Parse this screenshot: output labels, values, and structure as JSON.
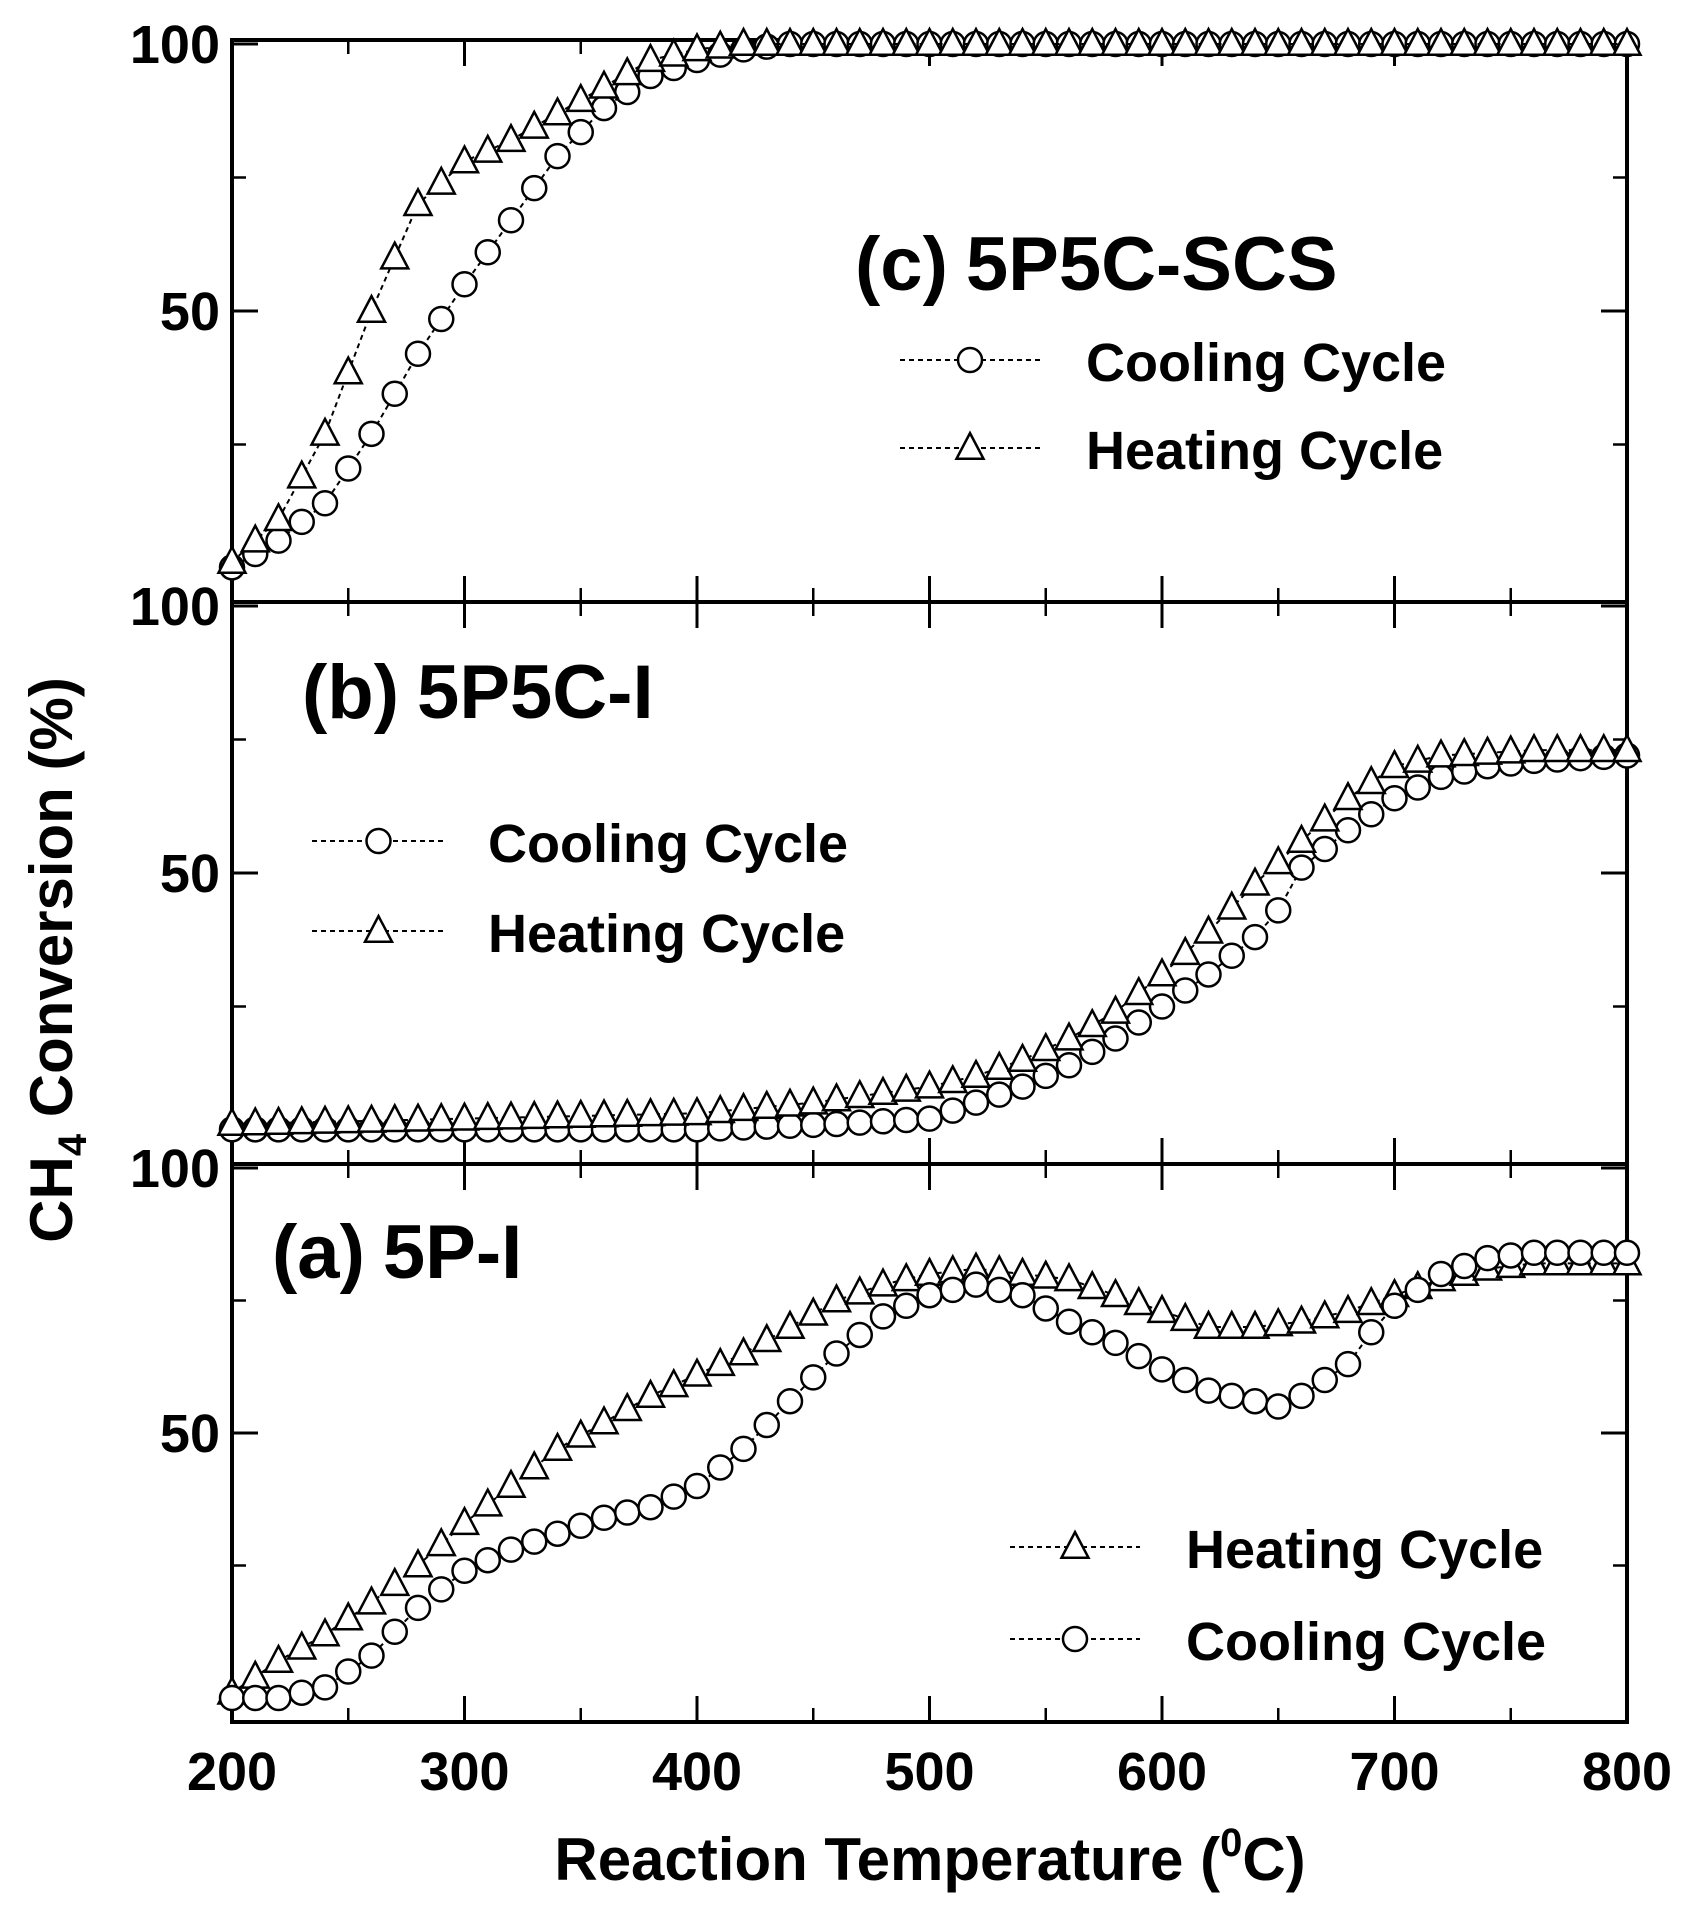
{
  "chart_data": {
    "type": "line",
    "shared_x_axis": {
      "label_parts": [
        "Reaction Temperature (",
        "0",
        "C)"
      ],
      "xlim": [
        200,
        800
      ],
      "major_ticks": [
        200,
        300,
        400,
        500,
        600,
        700,
        800
      ],
      "minor_ticks": [
        250,
        350,
        450,
        550,
        650,
        750
      ]
    },
    "shared_y_axis": {
      "label_parts": [
        "CH",
        "4",
        " Conversion (%)"
      ]
    },
    "marker_step": 10,
    "panels": [
      {
        "id": "c",
        "title_id": "(c)",
        "title_name": "5P5C-SCS",
        "ylim": [
          0,
          100
        ],
        "major_ticks": [
          50,
          100
        ],
        "minor_ticks": [
          25,
          75
        ],
        "tick_labels": [
          "50",
          "100"
        ],
        "legend": [
          "Cooling Cycle",
          "Heating Cycle"
        ],
        "series": [
          {
            "name": "Cooling Cycle",
            "marker": "circle",
            "points": [
              [
                200,
                2
              ],
              [
                220,
                7
              ],
              [
                240,
                14
              ],
              [
                260,
                27
              ],
              [
                280,
                42
              ],
              [
                300,
                55
              ],
              [
                320,
                67
              ],
              [
                340,
                79
              ],
              [
                360,
                88
              ],
              [
                380,
                94
              ],
              [
                400,
                97
              ],
              [
                420,
                99
              ],
              [
                440,
                100
              ],
              [
                800,
                100
              ]
            ]
          },
          {
            "name": "Heating Cycle",
            "marker": "triangle",
            "points": [
              [
                200,
                3
              ],
              [
                220,
                11
              ],
              [
                240,
                27
              ],
              [
                260,
                50
              ],
              [
                280,
                70
              ],
              [
                300,
                78
              ],
              [
                320,
                82
              ],
              [
                340,
                87
              ],
              [
                360,
                92
              ],
              [
                380,
                97
              ],
              [
                400,
                99
              ],
              [
                420,
                100
              ],
              [
                800,
                100
              ]
            ]
          }
        ]
      },
      {
        "id": "b",
        "title_id": "(b)",
        "title_name": "5P5C-I",
        "ylim": [
          0,
          100
        ],
        "major_ticks": [
          50,
          100
        ],
        "minor_ticks": [
          25,
          75
        ],
        "tick_labels": [
          "50",
          "100"
        ],
        "legend": [
          "Cooling Cycle",
          "Heating Cycle"
        ],
        "series": [
          {
            "name": "Cooling Cycle",
            "marker": "circle",
            "points": [
              [
                200,
                2
              ],
              [
                300,
                2
              ],
              [
                400,
                2
              ],
              [
                460,
                3
              ],
              [
                500,
                4
              ],
              [
                520,
                7
              ],
              [
                540,
                10
              ],
              [
                560,
                14
              ],
              [
                580,
                19
              ],
              [
                600,
                25
              ],
              [
                620,
                31
              ],
              [
                640,
                38
              ],
              [
                650,
                43
              ],
              [
                660,
                51
              ],
              [
                680,
                58
              ],
              [
                700,
                64
              ],
              [
                720,
                68
              ],
              [
                740,
                70
              ],
              [
                760,
                71
              ],
              [
                800,
                72
              ]
            ]
          },
          {
            "name": "Heating Cycle",
            "marker": "triangle",
            "points": [
              [
                200,
                3
              ],
              [
                300,
                4
              ],
              [
                400,
                5
              ],
              [
                450,
                7
              ],
              [
                500,
                10
              ],
              [
                520,
                12
              ],
              [
                540,
                15
              ],
              [
                560,
                19
              ],
              [
                580,
                24
              ],
              [
                600,
                31
              ],
              [
                620,
                39
              ],
              [
                640,
                48
              ],
              [
                660,
                56
              ],
              [
                680,
                64
              ],
              [
                700,
                70
              ],
              [
                720,
                72
              ],
              [
                760,
                73
              ],
              [
                800,
                73
              ]
            ]
          }
        ]
      },
      {
        "id": "a",
        "title_id": "(a)",
        "title_name": "5P-I",
        "ylim": [
          0,
          100
        ],
        "major_ticks": [
          50,
          100
        ],
        "minor_ticks": [
          25,
          75
        ],
        "tick_labels": [
          "50",
          "100"
        ],
        "legend": [
          "Heating Cycle",
          "Cooling Cycle"
        ],
        "series": [
          {
            "name": "Heating Cycle",
            "marker": "triangle",
            "points": [
              [
                200,
                1
              ],
              [
                220,
                7
              ],
              [
                240,
                12
              ],
              [
                260,
                18
              ],
              [
                280,
                25
              ],
              [
                300,
                33
              ],
              [
                320,
                40
              ],
              [
                340,
                47
              ],
              [
                360,
                52
              ],
              [
                380,
                57
              ],
              [
                400,
                61
              ],
              [
                420,
                65
              ],
              [
                440,
                70
              ],
              [
                460,
                75
              ],
              [
                480,
                78
              ],
              [
                500,
                80
              ],
              [
                520,
                81
              ],
              [
                540,
                80
              ],
              [
                560,
                79
              ],
              [
                580,
                76
              ],
              [
                600,
                73
              ],
              [
                620,
                70
              ],
              [
                640,
                70
              ],
              [
                660,
                71
              ],
              [
                680,
                73
              ],
              [
                700,
                76
              ],
              [
                720,
                79
              ],
              [
                740,
                81
              ],
              [
                760,
                82
              ],
              [
                800,
                82
              ]
            ]
          },
          {
            "name": "Cooling Cycle",
            "marker": "circle",
            "points": [
              [
                200,
                0
              ],
              [
                220,
                0
              ],
              [
                240,
                2
              ],
              [
                260,
                8
              ],
              [
                280,
                17
              ],
              [
                300,
                24
              ],
              [
                320,
                28
              ],
              [
                340,
                31
              ],
              [
                360,
                34
              ],
              [
                380,
                36
              ],
              [
                400,
                40
              ],
              [
                420,
                47
              ],
              [
                440,
                56
              ],
              [
                460,
                65
              ],
              [
                480,
                72
              ],
              [
                500,
                76
              ],
              [
                520,
                78
              ],
              [
                540,
                76
              ],
              [
                560,
                71
              ],
              [
                580,
                67
              ],
              [
                600,
                62
              ],
              [
                620,
                58
              ],
              [
                640,
                56
              ],
              [
                650,
                55
              ],
              [
                660,
                57
              ],
              [
                680,
                63
              ],
              [
                690,
                69
              ],
              [
                700,
                74
              ],
              [
                720,
                80
              ],
              [
                740,
                83
              ],
              [
                760,
                84
              ],
              [
                800,
                84
              ]
            ]
          }
        ]
      }
    ]
  }
}
